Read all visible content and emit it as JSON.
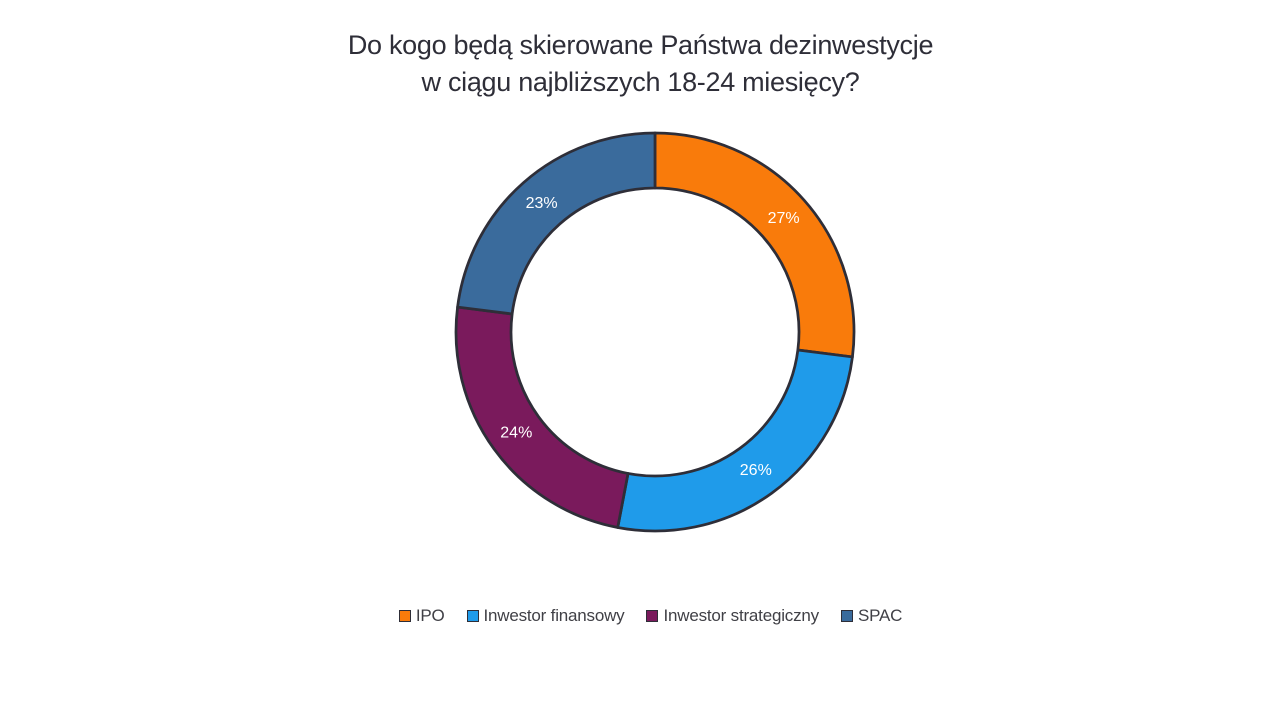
{
  "page": {
    "background_color": "#FFFFFF"
  },
  "title": {
    "line1": "Do kogo będą skierowane Państwa dezinwestycje",
    "line2": "w ciągu najbliższych 18-24 miesięcy?"
  },
  "chart_data": {
    "type": "pie",
    "subtype": "donut",
    "title": "Do kogo będą skierowane Państwa dezinwestycje w ciągu najbliższych 18-24 miesięcy?",
    "categories": [
      "IPO",
      "Inwestor finansowy",
      "Inwestor strategiczny",
      "SPAC"
    ],
    "values": [
      27,
      26,
      24,
      23
    ],
    "data_labels": [
      "27%",
      "26%",
      "24%",
      "23%"
    ],
    "colors": [
      "#F97B0B",
      "#1F9BEA",
      "#7A1A5C",
      "#3A6B9C"
    ],
    "stroke_color": "#2E2E38",
    "label_color": "#FFFFFF",
    "start_angle_deg": 0,
    "direction": "clockwise",
    "inner_radius_ratio": 0.7236,
    "legend_position": "bottom",
    "legend_entries": [
      "IPO",
      "Inwestor finansowy",
      "Inwestor strategiczny",
      "SPAC"
    ]
  }
}
